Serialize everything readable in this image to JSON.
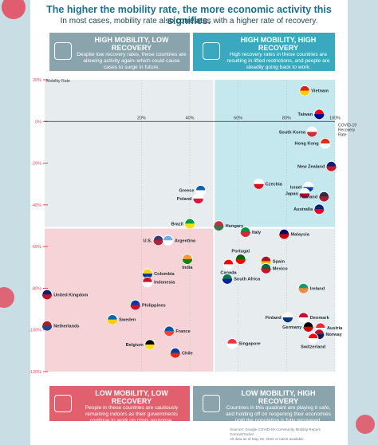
{
  "header": {
    "title": "The higher the mobility rate, the more economic activity this signifies.",
    "subtitle": "In most cases, mobility rate also correlates with a higher rate of recovery."
  },
  "quadrants": {
    "top_left": {
      "title": "HIGH MOBILITY, LOW RECOVERY",
      "desc": "Despite low recovery rates, these countries are allowing activity again–which could cause cases to surge in future.",
      "color": "#8aa4ad"
    },
    "top_right": {
      "title": "HIGH MOBILITY, HIGH RECOVERY",
      "desc": "High recovery rates in these countries are resulting in lifted restrictions, and people are steadily going back to work.",
      "color": "#3aa9c0"
    },
    "bottom_left": {
      "title": "LOW MOBILITY, LOW RECOVERY",
      "desc": "People in these countries are cautiously remaining indoors as their governments continue to work on crisis response.",
      "color": "#e0606d"
    },
    "bottom_right": {
      "title": "LOW MOBILITY, HIGH RECOVERY",
      "desc": "Countries in this quadrant are playing it safe, and holding off on reopening their economies until the population is fully recovered.",
      "color": "#8aa4ad"
    }
  },
  "footer": {
    "sources": "Sources: Google COVID-19 Community Mobility Report, CoronaTracker",
    "note": "All data as of May 29, 2020 or latest available."
  },
  "colors": {
    "q_tl": "#e7ecef",
    "q_tr": "#c5e7ee",
    "q_bl": "#f6d3d7",
    "q_br": "#e7ecef",
    "axis": "#333333",
    "grid": "#b4c0c6",
    "tick": "#e0485a"
  },
  "chart_data": {
    "type": "scatter",
    "y_axis_label": "Mobility Rate",
    "x_axis_label": "COVID-19 Recovery Rate",
    "xlim": [
      -20,
      100
    ],
    "ylim": [
      -120,
      20
    ],
    "x_ticks": [
      {
        "value": 20,
        "label": "20%"
      },
      {
        "value": 40,
        "label": "40%"
      },
      {
        "value": 60,
        "label": "60%"
      },
      {
        "value": 80,
        "label": "80%"
      },
      {
        "value": 100,
        "label": "100%"
      }
    ],
    "y_ticks": [
      {
        "value": 20,
        "label": "20%"
      },
      {
        "value": 0,
        "label": "0%"
      },
      {
        "value": -20,
        "label": "-20%"
      },
      {
        "value": -40,
        "label": "-40%"
      },
      {
        "value": -60,
        "label": "-60%"
      },
      {
        "value": -80,
        "label": "-80%"
      },
      {
        "value": -100,
        "label": "-100%"
      },
      {
        "value": -120,
        "label": "-120%"
      }
    ],
    "quadrant_split": {
      "x": 50,
      "y": -51
    },
    "points": [
      {
        "name": "Vietnam",
        "x": 87.5,
        "y": 14.8,
        "label_side": "right",
        "flag": [
          "#da251d",
          "#ffcd00"
        ]
      },
      {
        "name": "Taiwan",
        "x": 93.5,
        "y": 3.5,
        "label_side": "left",
        "flag": [
          "#fe0000",
          "#000095"
        ]
      },
      {
        "name": "South Korea",
        "x": 90.5,
        "y": -5,
        "label_side": "left",
        "flag": [
          "#ffffff",
          "#cd2e3a"
        ]
      },
      {
        "name": "Hong Kong",
        "x": 96,
        "y": -10.5,
        "label_side": "left",
        "flag": [
          "#de2910",
          "#ffffff"
        ]
      },
      {
        "name": "New Zealand",
        "x": 98.5,
        "y": -21.5,
        "label_side": "left",
        "flag": [
          "#00247d",
          "#cc142b"
        ]
      },
      {
        "name": "Czechia",
        "x": 68.5,
        "y": -30,
        "label_side": "right",
        "flag": [
          "#ffffff",
          "#d7141a"
        ]
      },
      {
        "name": "Israel",
        "x": 89,
        "y": -31.5,
        "label_side": "left",
        "flag": [
          "#ffffff",
          "#0038b8"
        ]
      },
      {
        "name": "Japan",
        "x": 87.5,
        "y": -34.5,
        "label_side": "left",
        "flag": [
          "#ffffff",
          "#bc002d"
        ]
      },
      {
        "name": "Thailand",
        "x": 95.5,
        "y": -36,
        "label_side": "left",
        "flag": [
          "#2d2a4a",
          "#a51931"
        ]
      },
      {
        "name": "Australia",
        "x": 93.5,
        "y": -42,
        "label_side": "left",
        "flag": [
          "#012169",
          "#e4002b"
        ]
      },
      {
        "name": "Greece",
        "x": 44.5,
        "y": -33,
        "label_side": "left",
        "flag": [
          "#0d5eaf",
          "#ffffff"
        ]
      },
      {
        "name": "Poland",
        "x": 43.5,
        "y": -37,
        "label_side": "left",
        "flag": [
          "#ffffff",
          "#dc143c"
        ]
      },
      {
        "name": "Brazil",
        "x": 40,
        "y": -49,
        "label_side": "left",
        "flag": [
          "#009c3b",
          "#ffdf00"
        ]
      },
      {
        "name": "Hungary",
        "x": 52,
        "y": -50,
        "label_side": "right",
        "flag": [
          "#cd2a3e",
          "#436f4d"
        ]
      },
      {
        "name": "Italy",
        "x": 63,
        "y": -53,
        "label_side": "right",
        "flag": [
          "#009246",
          "#ce2b37"
        ]
      },
      {
        "name": "Malaysia",
        "x": 79,
        "y": -54,
        "label_side": "right",
        "flag": [
          "#010066",
          "#cc0001"
        ]
      },
      {
        "name": "U.S.",
        "x": 27,
        "y": -57,
        "label_side": "left",
        "flag": [
          "#3c3b6e",
          "#b22234"
        ]
      },
      {
        "name": "Argentina",
        "x": 31,
        "y": -57,
        "label_side": "right",
        "flag": [
          "#74acdf",
          "#ffffff"
        ]
      },
      {
        "name": "India",
        "x": 39,
        "y": -66,
        "label_side": "below",
        "flag": [
          "#ff9933",
          "#138808"
        ]
      },
      {
        "name": "Portugal",
        "x": 61,
        "y": -66,
        "label_side": "above",
        "flag": [
          "#006600",
          "#ff0000"
        ]
      },
      {
        "name": "Spain",
        "x": 71.5,
        "y": -67,
        "label_side": "right",
        "flag": [
          "#aa151b",
          "#f1bf00"
        ]
      },
      {
        "name": "Canada",
        "x": 56,
        "y": -68.5,
        "label_side": "below",
        "flag": [
          "#ff0000",
          "#ffffff"
        ]
      },
      {
        "name": "Mexico",
        "x": 71.5,
        "y": -70.5,
        "label_side": "right",
        "flag": [
          "#006847",
          "#ce1126"
        ]
      },
      {
        "name": "Colombia",
        "x": 22.5,
        "y": -73,
        "label_side": "right",
        "flag": [
          "#fcd116",
          "#003893"
        ]
      },
      {
        "name": "South Africa",
        "x": 55.5,
        "y": -75.5,
        "label_side": "right",
        "flag": [
          "#007a4d",
          "#002395"
        ]
      },
      {
        "name": "Indonesia",
        "x": 22.5,
        "y": -77,
        "label_side": "right",
        "flag": [
          "#ce1126",
          "#ffffff"
        ]
      },
      {
        "name": "Ireland",
        "x": 87,
        "y": -80,
        "label_side": "right",
        "flag": [
          "#169b62",
          "#ff883e"
        ]
      },
      {
        "name": "United Kingdom",
        "x": -19,
        "y": -83,
        "label_side": "right",
        "flag": [
          "#012169",
          "#c8102e"
        ]
      },
      {
        "name": "Philippines",
        "x": 17.5,
        "y": -88,
        "label_side": "right",
        "flag": [
          "#0038a8",
          "#ce1126"
        ]
      },
      {
        "name": "Finland",
        "x": 80.5,
        "y": -94,
        "label_side": "left",
        "flag": [
          "#ffffff",
          "#003580"
        ]
      },
      {
        "name": "Denmark",
        "x": 87,
        "y": -94,
        "label_side": "right",
        "flag": [
          "#c8102e",
          "#ffffff"
        ]
      },
      {
        "name": "Sweden",
        "x": 8,
        "y": -95,
        "label_side": "right",
        "flag": [
          "#006aa7",
          "#fecc00"
        ]
      },
      {
        "name": "Netherlands",
        "x": -19,
        "y": -98,
        "label_side": "right",
        "flag": [
          "#ae1c28",
          "#21468b"
        ]
      },
      {
        "name": "Germany",
        "x": 89,
        "y": -98.5,
        "label_side": "left",
        "flag": [
          "#000000",
          "#dd0000"
        ]
      },
      {
        "name": "Austria",
        "x": 94,
        "y": -99,
        "label_side": "right",
        "flag": [
          "#ed2939",
          "#ffffff"
        ]
      },
      {
        "name": "France",
        "x": 31.5,
        "y": -100.5,
        "label_side": "right",
        "flag": [
          "#0055a4",
          "#ef4135"
        ]
      },
      {
        "name": "Norway",
        "x": 93.5,
        "y": -102,
        "label_side": "right",
        "flag": [
          "#ba0c2f",
          "#00205b"
        ]
      },
      {
        "name": "Belgium",
        "x": 23.5,
        "y": -107,
        "label_side": "left",
        "flag": [
          "#000000",
          "#fdda24"
        ]
      },
      {
        "name": "Singapore",
        "x": 57.5,
        "y": -106.5,
        "label_side": "right",
        "flag": [
          "#ef3340",
          "#ffffff"
        ]
      },
      {
        "name": "Switzerland",
        "x": 91,
        "y": -104,
        "label_side": "below",
        "flag": [
          "#ff0000",
          "#ffffff"
        ]
      },
      {
        "name": "Chile",
        "x": 34,
        "y": -111,
        "label_side": "right",
        "flag": [
          "#0039a6",
          "#d52b1e"
        ]
      }
    ]
  }
}
